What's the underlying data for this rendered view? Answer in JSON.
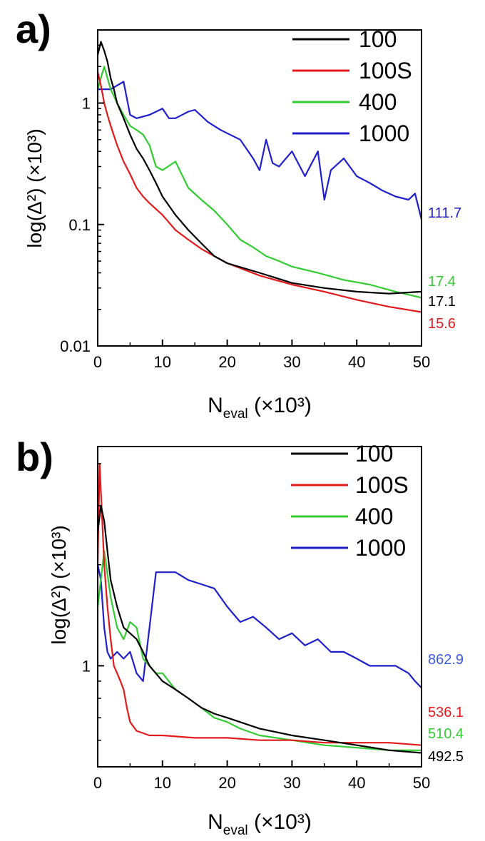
{
  "chart_data": [
    {
      "type": "line",
      "panel_label": "a)",
      "ylabel": "log(Δ²) (×10³)",
      "xlabel": "N_eval (×10³)",
      "xlabel_main": "N",
      "xlabel_sub": "eval",
      "xlabel_rest": " (×10³)",
      "yscale": "log",
      "xlim": [
        0,
        50
      ],
      "ylim": [
        0.01,
        4
      ],
      "xticks": [
        0,
        10,
        20,
        30,
        40,
        50
      ],
      "xtick_labels": [
        "0",
        "10",
        "20",
        "30",
        "40",
        "50"
      ],
      "yticks": [
        0.01,
        0.1,
        1
      ],
      "ytick_labels": [
        "0.01",
        "0.1",
        "1"
      ],
      "legend_position": "top-right",
      "series": [
        {
          "name": "100",
          "color": "#000000",
          "end_label": "17.1",
          "x": [
            0,
            0.5,
            1,
            1.5,
            2,
            2.5,
            3,
            4,
            5,
            6,
            7,
            8,
            9,
            10,
            12,
            14,
            16,
            18,
            20,
            25,
            30,
            35,
            40,
            45,
            50
          ],
          "y": [
            2.5,
            3.2,
            2.7,
            2.2,
            1.6,
            1.3,
            1.0,
            0.75,
            0.55,
            0.42,
            0.35,
            0.28,
            0.22,
            0.17,
            0.12,
            0.09,
            0.07,
            0.055,
            0.048,
            0.04,
            0.033,
            0.03,
            0.028,
            0.027,
            0.028
          ]
        },
        {
          "name": "100S",
          "color": "#e31a1c",
          "end_label": "15.6",
          "x": [
            0,
            0.5,
            1,
            1.5,
            2,
            3,
            4,
            5,
            6,
            7,
            8,
            10,
            12,
            14,
            16,
            18,
            20,
            25,
            30,
            35,
            40,
            45,
            50
          ],
          "y": [
            1.8,
            1.4,
            1.0,
            0.8,
            0.65,
            0.45,
            0.33,
            0.26,
            0.2,
            0.17,
            0.15,
            0.12,
            0.09,
            0.075,
            0.063,
            0.055,
            0.048,
            0.038,
            0.032,
            0.028,
            0.024,
            0.021,
            0.019
          ]
        },
        {
          "name": "400",
          "color": "#33cc33",
          "end_label": "17.4",
          "x": [
            0,
            1,
            2,
            3,
            4,
            5,
            6,
            7,
            8,
            9,
            10,
            12,
            14,
            16,
            18,
            20,
            22,
            24,
            26,
            28,
            30,
            34,
            38,
            42,
            46,
            50
          ],
          "y": [
            1.3,
            2.0,
            1.3,
            1.0,
            0.8,
            0.65,
            0.6,
            0.55,
            0.45,
            0.3,
            0.28,
            0.33,
            0.2,
            0.16,
            0.13,
            0.1,
            0.075,
            0.065,
            0.055,
            0.05,
            0.045,
            0.04,
            0.035,
            0.032,
            0.028,
            0.025
          ]
        },
        {
          "name": "1000",
          "color": "#1f1fcc",
          "end_label": "111.7",
          "x": [
            0,
            2,
            4,
            5,
            6,
            8,
            10,
            11,
            12,
            14,
            15,
            17,
            19,
            22,
            24,
            25,
            26,
            27,
            28,
            30,
            32,
            34,
            35,
            36,
            38,
            40,
            42,
            44,
            46,
            48,
            49,
            50
          ],
          "y": [
            1.3,
            1.3,
            1.5,
            0.8,
            0.75,
            0.8,
            0.9,
            0.75,
            0.75,
            0.85,
            0.88,
            0.7,
            0.6,
            0.5,
            0.35,
            0.28,
            0.5,
            0.32,
            0.3,
            0.4,
            0.25,
            0.4,
            0.16,
            0.28,
            0.35,
            0.25,
            0.22,
            0.19,
            0.17,
            0.16,
            0.18,
            0.11
          ]
        }
      ]
    },
    {
      "type": "line",
      "panel_label": "b)",
      "ylabel": "log(Δ²) (×10³)",
      "xlabel": "N_eval (×10³)",
      "xlabel_main": "N",
      "xlabel_sub": "eval",
      "xlabel_rest": " (×10³)",
      "yscale": "log",
      "xlim": [
        0,
        50
      ],
      "ylim": [
        0.5,
        4.5
      ],
      "xticks": [
        0,
        10,
        20,
        30,
        40,
        50
      ],
      "xtick_labels": [
        "0",
        "10",
        "20",
        "30",
        "40",
        "50"
      ],
      "yticks": [
        1
      ],
      "ytick_labels": [
        "1"
      ],
      "legend_position": "top-right",
      "series": [
        {
          "name": "100",
          "color": "#000000",
          "end_label": "492.5",
          "x": [
            0,
            0.5,
            1,
            1.5,
            2,
            3,
            4,
            5,
            6,
            7,
            8,
            10,
            12,
            14,
            16,
            18,
            20,
            25,
            30,
            35,
            40,
            45,
            50
          ],
          "y": [
            2.5,
            3.0,
            2.7,
            2.2,
            1.8,
            1.5,
            1.3,
            1.25,
            1.2,
            1.1,
            1.0,
            0.9,
            0.85,
            0.8,
            0.75,
            0.72,
            0.7,
            0.65,
            0.62,
            0.6,
            0.58,
            0.56,
            0.55
          ]
        },
        {
          "name": "100S",
          "color": "#e31a1c",
          "end_label": "536.1",
          "x": [
            0,
            0.3,
            0.6,
            1,
            1.5,
            2,
            2.5,
            3,
            3.5,
            4,
            4.5,
            5,
            6,
            8,
            10,
            15,
            20,
            25,
            30,
            35,
            40,
            45,
            50
          ],
          "y": [
            2.0,
            4.0,
            3.0,
            2.0,
            1.5,
            1.2,
            1.0,
            0.95,
            0.9,
            0.85,
            0.75,
            0.68,
            0.64,
            0.62,
            0.62,
            0.61,
            0.61,
            0.6,
            0.6,
            0.59,
            0.59,
            0.59,
            0.58
          ]
        },
        {
          "name": "400",
          "color": "#33cc33",
          "end_label": "510.4",
          "x": [
            0,
            1,
            2,
            3,
            4,
            5,
            6,
            7,
            8,
            9,
            10,
            12,
            14,
            16,
            18,
            20,
            22,
            25,
            30,
            35,
            40,
            45,
            50
          ],
          "y": [
            1.5,
            2.2,
            1.6,
            1.3,
            1.2,
            1.35,
            1.3,
            1.05,
            1.0,
            0.95,
            0.95,
            0.85,
            0.8,
            0.75,
            0.7,
            0.68,
            0.65,
            0.62,
            0.6,
            0.58,
            0.57,
            0.56,
            0.56
          ]
        },
        {
          "name": "1000",
          "color": "#1f1fcc",
          "end_label": "862.9",
          "x": [
            0,
            0.5,
            1,
            1.5,
            2,
            3,
            4,
            5,
            6,
            7,
            8,
            9,
            10,
            12,
            14,
            16,
            18,
            20,
            22,
            24,
            26,
            28,
            30,
            32,
            34,
            36,
            38,
            40,
            42,
            44,
            46,
            48,
            49,
            50
          ],
          "y": [
            2.0,
            1.8,
            1.3,
            1.1,
            1.05,
            1.1,
            1.05,
            1.1,
            0.95,
            0.9,
            1.3,
            1.9,
            1.9,
            1.9,
            1.8,
            1.75,
            1.7,
            1.5,
            1.35,
            1.4,
            1.3,
            1.2,
            1.25,
            1.15,
            1.2,
            1.1,
            1.1,
            1.05,
            1.0,
            1.0,
            1.0,
            0.95,
            0.9,
            0.86
          ]
        }
      ]
    }
  ]
}
